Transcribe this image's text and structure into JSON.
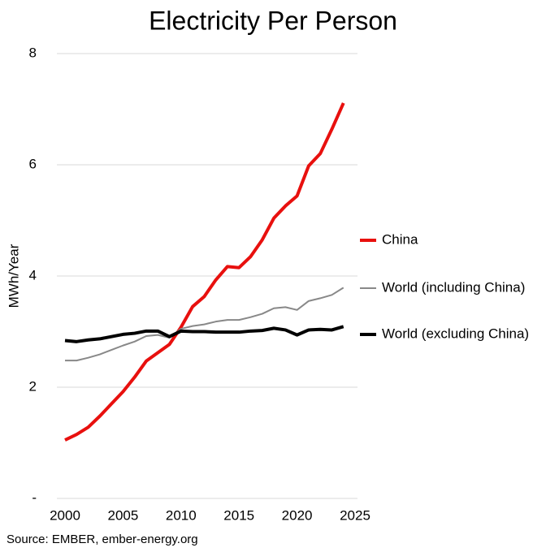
{
  "chart_data": {
    "type": "line",
    "title": "Electricity Per Person",
    "y_label": "MWh/Year",
    "source": "Source: EMBER, ember-energy.org",
    "x": [
      2000,
      2001,
      2002,
      2003,
      2004,
      2005,
      2006,
      2007,
      2008,
      2009,
      2010,
      2011,
      2012,
      2013,
      2014,
      2015,
      2016,
      2017,
      2018,
      2019,
      2020,
      2021,
      2022,
      2023,
      2024
    ],
    "series": [
      {
        "name": "China",
        "color": "#e8100e",
        "width": 4,
        "values": [
          1.05,
          1.15,
          1.28,
          1.48,
          1.7,
          1.92,
          2.18,
          2.47,
          2.62,
          2.77,
          3.08,
          3.45,
          3.63,
          3.93,
          4.17,
          4.15,
          4.35,
          4.65,
          5.04,
          5.26,
          5.44,
          5.98,
          6.2,
          6.64,
          7.11
        ]
      },
      {
        "name": "World (including China)",
        "color": "#888888",
        "width": 2,
        "values": [
          2.48,
          2.48,
          2.53,
          2.59,
          2.67,
          2.75,
          2.82,
          2.92,
          2.94,
          2.89,
          3.05,
          3.1,
          3.13,
          3.18,
          3.21,
          3.21,
          3.26,
          3.32,
          3.42,
          3.44,
          3.39,
          3.55,
          3.6,
          3.66,
          3.79
        ]
      },
      {
        "name": "World (excluding China)",
        "color": "#000000",
        "width": 4,
        "values": [
          2.84,
          2.82,
          2.85,
          2.87,
          2.91,
          2.95,
          2.97,
          3.01,
          3.01,
          2.91,
          3.01,
          3.0,
          3.0,
          2.99,
          2.99,
          2.99,
          3.01,
          3.02,
          3.06,
          3.03,
          2.94,
          3.03,
          3.04,
          3.03,
          3.09
        ]
      }
    ],
    "xlim": [
      2000,
      2025
    ],
    "xticks": [
      2000,
      2005,
      2010,
      2015,
      2020,
      2025
    ],
    "ylim": [
      0,
      8
    ],
    "yticks": [
      {
        "value": 0,
        "label": "-"
      },
      2,
      4,
      6,
      8
    ],
    "grid": true
  }
}
